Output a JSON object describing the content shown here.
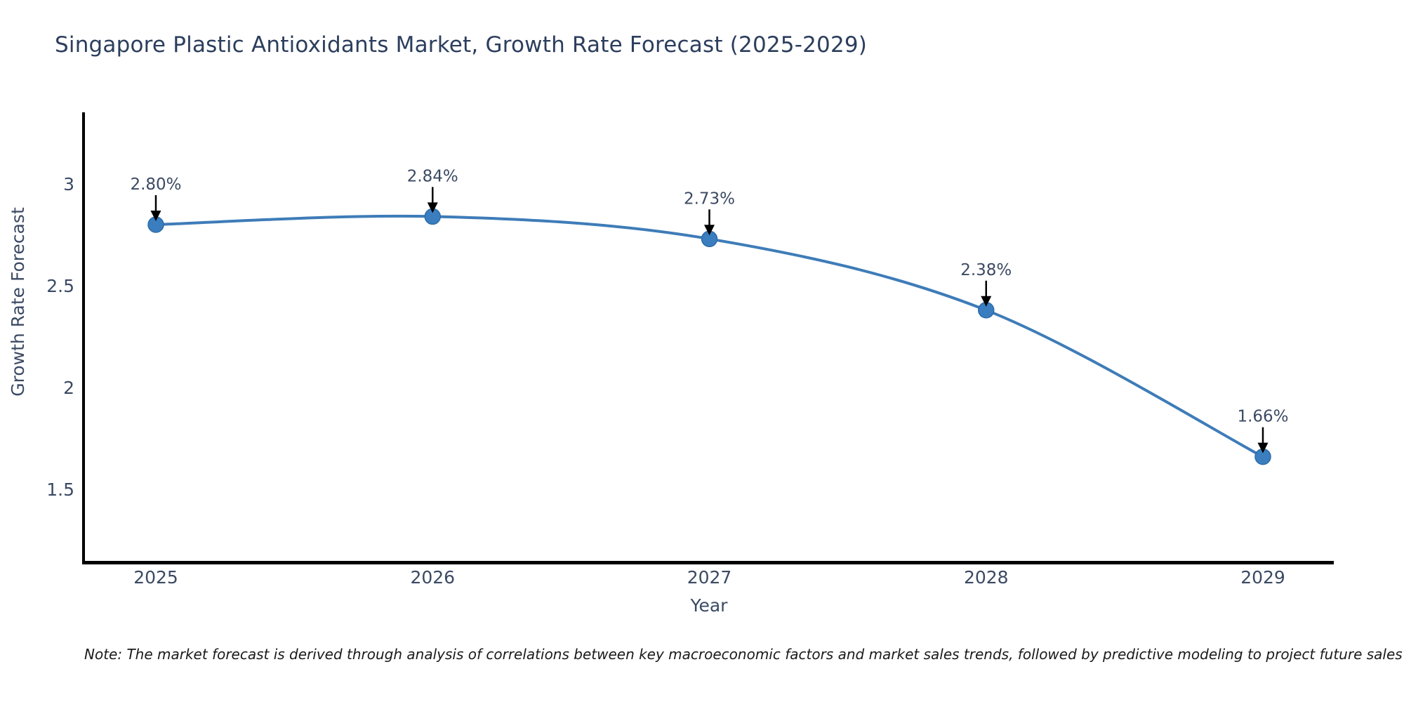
{
  "footnote": "Note: The market forecast is derived through analysis of correlations between key macroeconomic factors and market sales trends, followed by predictive modeling to project future sales",
  "chart_data": {
    "type": "line",
    "title": "Singapore Plastic Antioxidants Market, Growth Rate Forecast (2025-2029)",
    "x": [
      "2025",
      "2026",
      "2027",
      "2028",
      "2029"
    ],
    "series": [
      {
        "name": "Growth Rate Forecast",
        "values": [
          2.8,
          2.84,
          2.73,
          2.38,
          1.66
        ]
      }
    ],
    "point_labels": [
      "2.80%",
      "2.84%",
      "2.73%",
      "2.38%",
      "1.66%"
    ],
    "xlabel": "Year",
    "ylabel": "Growth Rate Forecast",
    "yticks": [
      3,
      2.5,
      2,
      1.5
    ],
    "ytick_labels": [
      "3",
      "2.5",
      "2",
      "1.5"
    ],
    "ylim": [
      1.13,
      3.35
    ],
    "grid": false,
    "legend": "none",
    "annotation_style": "value label with downward arrow onto each marker",
    "colors": {
      "line": "#3e7cb8",
      "marker": "#3a7ebf",
      "marker_edge": "#2e6ba8",
      "annotation_arrow": "#000000",
      "tick_text": "#3b4a63",
      "title_text": "#2c3e5d",
      "axis_spine": "#000000",
      "note_text": "#1a1a1a",
      "background": "#ffffff"
    }
  }
}
